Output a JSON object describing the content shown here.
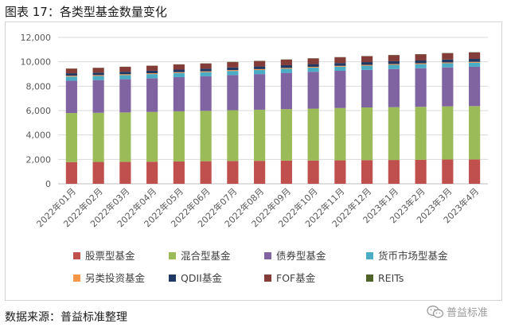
{
  "header": {
    "caption": "图表 17：各类型基金数量变化"
  },
  "footer": {
    "source": "数据来源：普益标准整理",
    "watermark": "普益标准"
  },
  "chart_data": {
    "type": "bar",
    "stacked": true,
    "title": "",
    "xlabel": "",
    "ylabel": "",
    "ylim": [
      0,
      12000
    ],
    "yticks": [
      0,
      2000,
      4000,
      6000,
      8000,
      10000,
      12000
    ],
    "ytick_labels": [
      "0",
      "2,000",
      "4,000",
      "6,000",
      "8,000",
      "10,000",
      "12,000"
    ],
    "grid": "horizontal",
    "legend_position": "bottom",
    "categories": [
      "2022年01月",
      "2022年02月",
      "2022年03月",
      "2022年04月",
      "2022年05月",
      "2022年06月",
      "2022年07月",
      "2022年08月",
      "2022年09月",
      "2022年10月",
      "2022年11月",
      "2022年12月",
      "2023年1月",
      "2023年2月",
      "2023年3月",
      "2023年4月"
    ],
    "series": [
      {
        "name": "股票型基金",
        "color": "#c0504d",
        "values": [
          1780,
          1790,
          1800,
          1810,
          1830,
          1850,
          1870,
          1880,
          1900,
          1910,
          1920,
          1940,
          1950,
          1970,
          1990,
          2000
        ]
      },
      {
        "name": "混合型基金",
        "color": "#9bbb59",
        "values": [
          4020,
          4030,
          4050,
          4080,
          4110,
          4130,
          4160,
          4190,
          4220,
          4250,
          4290,
          4320,
          4330,
          4340,
          4360,
          4370
        ]
      },
      {
        "name": "债券型基金",
        "color": "#8064a2",
        "values": [
          2650,
          2680,
          2720,
          2760,
          2800,
          2830,
          2880,
          2920,
          2970,
          3020,
          3050,
          3080,
          3130,
          3160,
          3190,
          3220
        ]
      },
      {
        "name": "货币市场型基金",
        "color": "#4bacc6",
        "values": [
          340,
          340,
          340,
          340,
          340,
          340,
          340,
          340,
          340,
          340,
          340,
          340,
          340,
          340,
          340,
          340
        ]
      },
      {
        "name": "另类投资基金",
        "color": "#f79646",
        "values": [
          70,
          70,
          70,
          70,
          70,
          70,
          70,
          70,
          70,
          70,
          70,
          70,
          70,
          70,
          70,
          70
        ]
      },
      {
        "name": "QDII基金",
        "color": "#1f3864",
        "values": [
          200,
          200,
          205,
          205,
          210,
          210,
          215,
          215,
          220,
          220,
          225,
          225,
          230,
          230,
          235,
          240
        ]
      },
      {
        "name": "FOF基金",
        "color": "#843c39",
        "values": [
          380,
          390,
          400,
          410,
          420,
          430,
          440,
          450,
          455,
          460,
          470,
          480,
          490,
          500,
          510,
          520
        ]
      },
      {
        "name": "REITs",
        "color": "#4f6228",
        "values": [
          12,
          12,
          14,
          14,
          14,
          15,
          16,
          17,
          18,
          18,
          19,
          20,
          20,
          22,
          24,
          24
        ]
      }
    ]
  }
}
